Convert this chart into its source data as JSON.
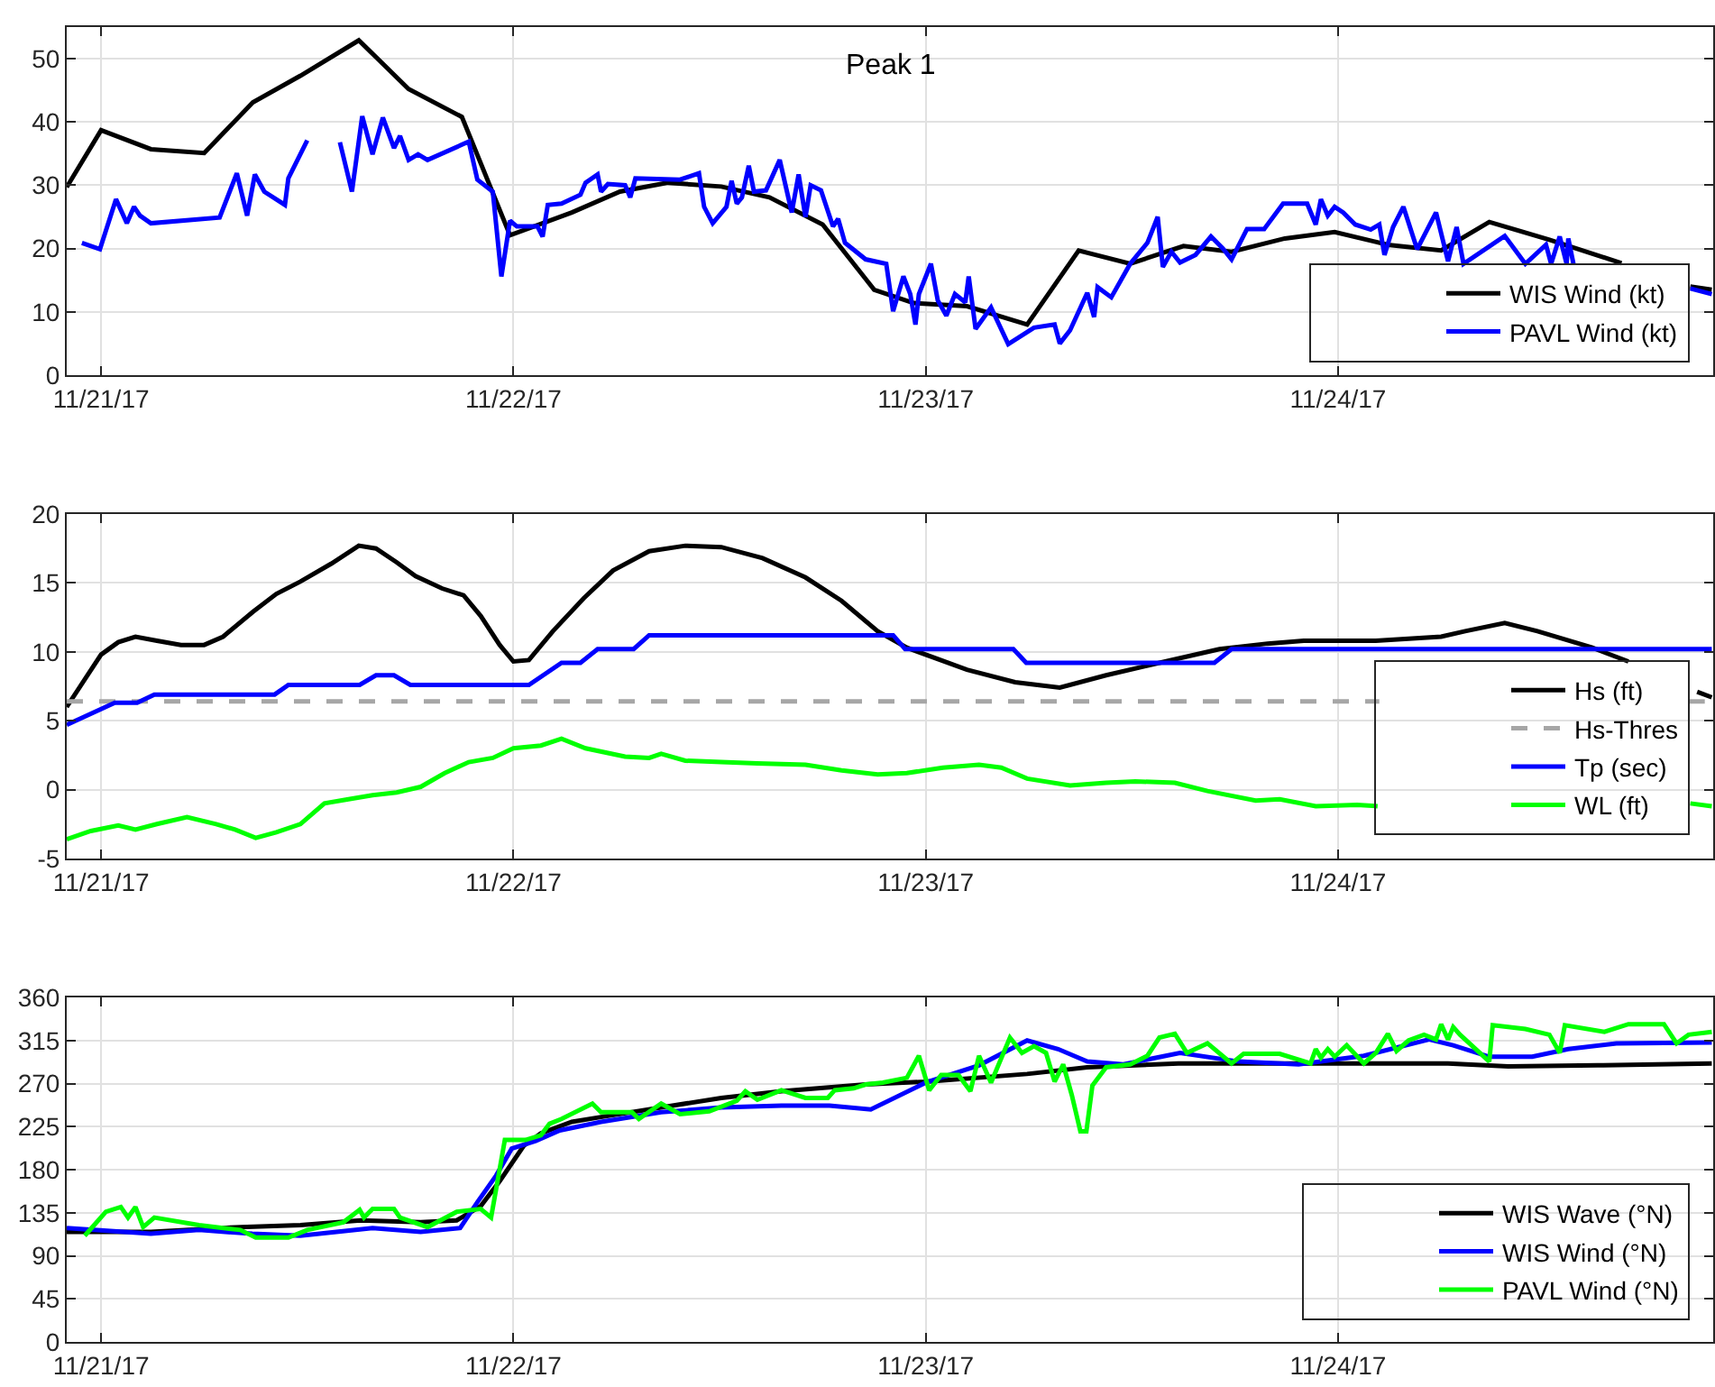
{
  "chart_data": [
    {
      "type": "line",
      "title": "Peak 1",
      "xlim": [
        "--11-20T22:00",
        "--11-24T21:50"
      ],
      "xticks": [
        {
          "value": "--11-21",
          "label": "11/21/17"
        },
        {
          "value": "--11-22",
          "label": "11/22/17"
        },
        {
          "value": "--11-23",
          "label": "11/23/17"
        },
        {
          "value": "--11-24",
          "label": "11/24/17"
        }
      ],
      "ylim": [
        0,
        55
      ],
      "yticks": [
        0,
        10,
        20,
        30,
        40,
        50
      ],
      "grid": true,
      "legend": "bottom right",
      "series": [
        {
          "name": "WIS Wind (kt)",
          "color": "#000000",
          "x": [
            "--11-20T22:00",
            "--11-21T00:00",
            "--11-21T02:54",
            "--11-21T06:00",
            "--11-21T08:50",
            "--11-21T11:36",
            "--11-21T15:00",
            "--11-21T17:54",
            "--11-21T21:00",
            "--11-21T23:48",
            "--11-22T03:24",
            "--11-22T06:12",
            "--11-22T09:00",
            "--11-22T12:06",
            "--11-22T14:54",
            "--11-22T18:00",
            "--11-22T20:30",
            "--11-22T21:00",
            "--11-22T23:18",
            "--11-23T02:24",
            "--11-23T05:54",
            "--11-23T08:54",
            "--11-23T11:54",
            "--11-23T15:00",
            "--11-23T17:48",
            "--11-23T20:54",
            "--11-23T23:48",
            "--11-24T02:54",
            "--11-24T06:00",
            "--11-24T08:48",
            "--11-24T12:18",
            "--11-24T16:30",
            "--11-24T18:30",
            "--11-24T20:30",
            "--11-24T21:45"
          ],
          "values": [
            29.7,
            38.7,
            35.7,
            35.1,
            43.1,
            47.3,
            52.9,
            45.2,
            40.8,
            22.1,
            25.7,
            29.0,
            30.4,
            29.8,
            28.1,
            23.8,
            15.2,
            13.5,
            11.4,
            10.9,
            8.0,
            19.7,
            17.6,
            20.4,
            19.5,
            21.6,
            22.6,
            20.6,
            19.7,
            24.2,
            21.4,
            17.7,
            null,
            14.0,
            13.5
          ]
        },
        {
          "name": "PAVL Wind (kt)",
          "color": "#0000ff",
          "x": [
            "--11-20T22:53",
            "--11-20T23:56",
            "--11-21T00:52",
            "--11-21T01:30",
            "--11-21T01:55",
            "--11-21T02:16",
            "--11-21T02:54",
            "--11-21T06:54",
            "--11-21T07:54",
            "--11-21T08:30",
            "--11-21T08:57",
            "--11-21T09:30",
            "--11-21T10:42",
            "--11-21T10:54",
            "--11-21T12:00",
            "--11-21T13:00",
            "--11-21T13:54",
            "--11-21T14:36",
            "--11-21T15:12",
            "--11-21T15:48",
            "--11-21T16:24",
            "--11-21T17:03",
            "--11-21T17:24",
            "--11-21T17:54",
            "--11-21T18:27",
            "--11-21T19:00",
            "--11-21T21:24",
            "--11-21T21:54",
            "--11-21T22:48",
            "--11-21T23:18",
            "--11-21T23:48",
            "--11-22T00:12",
            "--11-22T01:24",
            "--11-22T01:42",
            "--11-22T02:00",
            "--11-22T02:48",
            "--11-22T03:54",
            "--11-22T04:12",
            "--11-22T04:54",
            "--11-22T05:06",
            "--11-22T05:30",
            "--11-22T06:30",
            "--11-22T06:48",
            "--11-22T07:06",
            "--11-22T09:42",
            "--11-22T10:48",
            "--11-22T11:06",
            "--11-22T11:36",
            "--11-22T12:24",
            "--11-22T12:42",
            "--11-22T13:00",
            "--11-22T13:18",
            "--11-22T13:42",
            "--11-22T14:00",
            "--11-22T14:42",
            "--11-22T15:30",
            "--11-22T16:12",
            "--11-22T16:36",
            "--11-22T17:00",
            "--11-22T17:18",
            "--11-22T17:54",
            "--11-22T18:36",
            "--11-22T18:54",
            "--11-22T19:18",
            "--11-22T20:30",
            "--11-22T21:42",
            "--11-22T22:06",
            "--11-22T22:42",
            "--11-22T23:06",
            "--11-22T23:24",
            "--11-22T23:36",
            "--11-23T00:18",
            "--11-23T00:42",
            "--11-23T01:12",
            "--11-23T01:42",
            "--11-23T02:18",
            "--11-23T02:30",
            "--11-23T02:54",
            "--11-23T03:48",
            "--11-23T04:48",
            "--11-23T06:18",
            "--11-23T07:30",
            "--11-23T07:48",
            "--11-23T08:24",
            "--11-23T09:24",
            "--11-23T09:48",
            "--11-23T10:00",
            "--11-23T10:48",
            "--11-23T11:54",
            "--11-23T12:54",
            "--11-23T13:30",
            "--11-23T13:48",
            "--11-23T14:18",
            "--11-23T14:48",
            "--11-23T15:42",
            "--11-23T16:36",
            "--11-23T17:18",
            "--11-23T17:48",
            "--11-23T18:42",
            "--11-23T19:42",
            "--11-23T20:48",
            "--11-23T22:12",
            "--11-23T22:42",
            "--11-23T23:00",
            "--11-23T23:24",
            "--11-23T23:48",
            "--11-24T00:18",
            "--11-24T01:00",
            "--11-24T01:54",
            "--11-24T02:24",
            "--11-24T02:42",
            "--11-24T03:12",
            "--11-24T03:48",
            "--11-24T04:36",
            "--11-24T05:42",
            "--11-24T06:24",
            "--11-24T06:54",
            "--11-24T07:18",
            "--11-24T09:42",
            "--11-24T10:54",
            "--11-24T12:06",
            "--11-24T12:24",
            "--11-24T12:54",
            "--11-24T13:18",
            "--11-24T13:24",
            "--11-24T13:42",
            "--11-24T17:00",
            "--11-24T20:30",
            "--11-24T21:45"
          ],
          "values": [
            20.9,
            19.9,
            27.8,
            24.0,
            26.6,
            25.2,
            24.0,
            24.9,
            31.9,
            25.2,
            31.7,
            29.0,
            26.9,
            31.1,
            37.1,
            null,
            36.8,
            29.0,
            40.9,
            34.9,
            40.7,
            35.9,
            37.8,
            34.0,
            34.9,
            34.0,
            36.9,
            30.9,
            29.0,
            15.6,
            24.4,
            23.5,
            23.5,
            21.9,
            26.9,
            27.1,
            28.5,
            30.4,
            31.7,
            29.0,
            30.2,
            30.0,
            28.1,
            31.1,
            30.9,
            31.9,
            26.6,
            24.0,
            26.6,
            30.7,
            27.1,
            28.1,
            33.1,
            29.0,
            29.2,
            34.0,
            25.7,
            31.7,
            25.0,
            30.0,
            29.2,
            23.5,
            24.7,
            20.9,
            18.3,
            17.6,
            10.1,
            15.6,
            12.8,
            8.0,
            12.8,
            17.6,
            11.8,
            9.4,
            12.8,
            11.5,
            15.6,
            7.3,
            10.7,
            4.9,
            7.5,
            8.0,
            5.0,
            7.1,
            13.0,
            9.2,
            13.9,
            12.3,
            17.6,
            20.9,
            25.0,
            17.1,
            19.5,
            17.8,
            19.0,
            21.9,
            20.0,
            18.3,
            23.1,
            23.1,
            27.1,
            27.1,
            23.8,
            27.8,
            25.2,
            26.6,
            25.7,
            23.8,
            23.0,
            23.8,
            19.0,
            23.4,
            26.6,
            19.9,
            25.7,
            18.0,
            23.4,
            17.6,
            22.0,
            17.6,
            20.6,
            17.6,
            21.9,
            17.6,
            21.6,
            17.6,
            null,
            13.7,
            12.8
          ]
        }
      ]
    },
    {
      "type": "line",
      "xlim": [
        "--11-20T22:00",
        "--11-24T21:50"
      ],
      "xticks": [
        {
          "value": "--11-21",
          "label": "11/21/17"
        },
        {
          "value": "--11-22",
          "label": "11/22/17"
        },
        {
          "value": "--11-23",
          "label": "11/23/17"
        },
        {
          "value": "--11-24",
          "label": "11/24/17"
        }
      ],
      "ylim": [
        -5,
        20
      ],
      "yticks": [
        -5,
        0,
        5,
        10,
        15,
        20
      ],
      "grid": true,
      "legend": "bottom right",
      "series": [
        {
          "name": "Hs (ft)",
          "color": "#000000",
          "x": [
            "--11-20T22:00",
            "--11-20T23:03",
            "--11-21T00:00",
            "--11-21T01:00",
            "--11-21T02:00",
            "--11-21T03:15",
            "--11-21T04:39",
            "--11-21T06:00",
            "--11-21T07:06",
            "--11-21T08:50",
            "--11-21T10:12",
            "--11-21T11:36",
            "--11-21T13:24",
            "--11-21T15:00",
            "--11-21T16:00",
            "--11-21T17:12",
            "--11-21T18:18",
            "--11-21T19:51",
            "--11-21T21:06",
            "--11-21T22:06",
            "--11-21T23:12",
            "--11-22T00:00",
            "--11-22T00:54",
            "--11-22T02:18",
            "--11-22T04:06",
            "--11-22T05:48",
            "--11-22T07:54",
            "--11-22T10:00",
            "--11-22T12:06",
            "--11-22T14:30",
            "--11-22T17:00",
            "--11-22T19:06",
            "--11-22T21:12",
            "--11-22T22:54",
            "--11-23T02:24",
            "--11-23T05:12",
            "--11-23T07:48",
            "--11-23T10:30",
            "--11-23T13:36",
            "--11-23T17:06",
            "--11-23T19:54",
            "--11-23T22:00",
            "--11-24T02:12",
            "--11-24T06:00",
            "--11-24T07:24",
            "--11-24T09:42",
            "--11-24T11:36",
            "--11-24T14:48",
            "--11-24T16:54",
            "--11-24T19:00",
            "--11-24T20:54",
            "--11-24T21:45"
          ],
          "values": [
            6.0,
            8.0,
            9.8,
            10.7,
            11.1,
            10.8,
            10.5,
            10.5,
            11.1,
            12.9,
            14.2,
            15.1,
            16.4,
            17.7,
            17.5,
            16.5,
            15.5,
            14.6,
            14.1,
            12.6,
            10.5,
            9.3,
            9.4,
            11.5,
            13.9,
            15.9,
            17.3,
            17.7,
            17.6,
            16.8,
            15.4,
            13.7,
            11.5,
            10.3,
            8.7,
            7.8,
            7.4,
            8.3,
            9.2,
            10.2,
            10.6,
            10.8,
            10.8,
            11.1,
            11.5,
            12.1,
            11.5,
            10.3,
            9.3,
            null,
            7.1,
            6.7
          ]
        },
        {
          "name": "Hs-Thres",
          "color": "#a6a6a6",
          "line_style": "dashed",
          "x": [
            "--11-20T22:00",
            "--11-24T02:24",
            "--11-24T11:00",
            "--11-24T20:24",
            "--11-24T21:50"
          ],
          "values": [
            6.4,
            6.4,
            null,
            6.4,
            6.4
          ]
        },
        {
          "name": "Tp (sec)",
          "color": "#0000ff",
          "x": [
            "--11-20T22:00",
            "--11-21T00:48",
            "--11-21T02:06",
            "--11-21T03:06",
            "--11-21T10:06",
            "--11-21T10:54",
            "--11-21T15:03",
            "--11-21T16:00",
            "--11-21T17:03",
            "--11-21T18:00",
            "--11-22T00:54",
            "--11-22T02:48",
            "--11-22T03:54",
            "--11-22T04:54",
            "--11-22T07:00",
            "--11-22T07:54",
            "--11-22T22:06",
            "--11-22T22:48",
            "--11-23T05:06",
            "--11-23T05:51",
            "--11-23T16:48",
            "--11-23T17:48",
            "--11-24T21:45"
          ],
          "values": [
            4.7,
            6.3,
            6.3,
            6.9,
            6.9,
            7.6,
            7.6,
            8.3,
            8.3,
            7.6,
            7.6,
            9.2,
            9.2,
            10.2,
            10.2,
            11.2,
            11.2,
            10.2,
            10.2,
            9.2,
            9.2,
            10.2,
            10.2
          ]
        },
        {
          "name": "WL (ft)",
          "color": "#00ff00",
          "x": [
            "--11-20T22:00",
            "--11-20T23:24",
            "--11-21T01:00",
            "--11-21T02:00",
            "--11-21T03:15",
            "--11-21T05:00",
            "--11-21T06:42",
            "--11-21T07:48",
            "--11-21T09:00",
            "--11-21T10:12",
            "--11-21T11:36",
            "--11-21T13:00",
            "--11-21T14:24",
            "--11-21T15:48",
            "--11-21T17:12",
            "--11-21T18:36",
            "--11-21T20:00",
            "--11-21T21:24",
            "--11-21T22:48",
            "--11-22T00:00",
            "--11-22T01:36",
            "--11-22T02:48",
            "--11-22T04:12",
            "--11-22T06:30",
            "--11-22T07:54",
            "--11-22T08:36",
            "--11-22T10:00",
            "--11-22T12:06",
            "--11-22T14:12",
            "--11-22T17:00",
            "--11-22T19:06",
            "--11-22T21:12",
            "--11-22T22:54",
            "--11-23T01:00",
            "--11-23T03:06",
            "--11-23T04:24",
            "--11-23T05:54",
            "--11-23T08:24",
            "--11-23T10:30",
            "--11-23T12:12",
            "--11-23T14:30",
            "--11-23T16:24",
            "--11-23T19:12",
            "--11-23T20:36",
            "--11-23T22:42",
            "--11-24T01:06",
            "--11-24T02:18",
            "--11-24T11:00",
            "--11-24T20:30",
            "--11-24T21:45"
          ],
          "values": [
            -3.6,
            -3.0,
            -2.6,
            -2.9,
            -2.5,
            -2.0,
            -2.5,
            -2.9,
            -3.5,
            -3.1,
            -2.5,
            -1.0,
            -0.7,
            -0.4,
            -0.2,
            0.2,
            1.2,
            2.0,
            2.3,
            3.0,
            3.2,
            3.7,
            3.0,
            2.4,
            2.3,
            2.6,
            2.1,
            2.0,
            1.9,
            1.8,
            1.4,
            1.1,
            1.2,
            1.6,
            1.8,
            1.6,
            0.8,
            0.3,
            0.5,
            0.6,
            0.5,
            -0.1,
            -0.8,
            -0.7,
            -1.2,
            -1.1,
            -1.2,
            null,
            -1.0,
            -1.2
          ]
        }
      ]
    },
    {
      "type": "line",
      "xlim": [
        "--11-20T22:00",
        "--11-24T21:50"
      ],
      "xticks": [
        {
          "value": "--11-21",
          "label": "11/21/17"
        },
        {
          "value": "--11-22",
          "label": "11/22/17"
        },
        {
          "value": "--11-23",
          "label": "11/23/17"
        },
        {
          "value": "--11-24",
          "label": "11/24/17"
        }
      ],
      "ylim": [
        0,
        360
      ],
      "yticks": [
        0,
        45,
        90,
        135,
        180,
        225,
        270,
        315,
        360
      ],
      "grid": true,
      "legend": "bottom right",
      "series": [
        {
          "name": "WIS Wave (°N)",
          "color": "#000000",
          "x": [
            "--11-20T22:00",
            "--11-21T02:54",
            "--11-21T08:06",
            "--11-21T11:36",
            "--11-21T15:06",
            "--11-21T18:36",
            "--11-21T20:42",
            "--11-21T22:06",
            "--11-21T23:12",
            "--11-22T00:36",
            "--11-22T01:36",
            "--11-22T03:24",
            "--11-22T05:06",
            "--11-22T08:36",
            "--11-22T12:06",
            "--11-22T15:36",
            "--11-22T20:30",
            "--11-23T00:00",
            "--11-23T05:54",
            "--11-23T09:24",
            "--11-23T14:42",
            "--11-23T23:24",
            "--11-24T06:24",
            "--11-24T09:54",
            "--11-24T15:06",
            "--11-24T21:45"
          ],
          "values": [
            115,
            115,
            120,
            122,
            127,
            125,
            127,
            142,
            168,
            205,
            218,
            230,
            235,
            245,
            255,
            262,
            269,
            272,
            280,
            287,
            291,
            291,
            291,
            288,
            289,
            291
          ]
        },
        {
          "name": "WIS Wind (°N)",
          "color": "#0000ff",
          "x": [
            "--11-20T22:00",
            "--11-21T02:54",
            "--11-21T05:42",
            "--11-21T08:48",
            "--11-21T11:36",
            "--11-21T13:42",
            "--11-21T15:48",
            "--11-21T18:36",
            "--11-21T20:54",
            "--11-21T21:54",
            "--11-21T23:00",
            "--11-21T23:54",
            "--11-22T01:18",
            "--11-22T02:42",
            "--11-22T05:06",
            "--11-22T08:36",
            "--11-22T12:06",
            "--11-22T15:36",
            "--11-22T18:24",
            "--11-22T20:48",
            "--11-23T00:00",
            "--11-23T03:06",
            "--11-23T05:54",
            "--11-23T07:42",
            "--11-23T09:24",
            "--11-23T11:30",
            "--11-23T14:48",
            "--11-23T18:12",
            "--11-23T21:42",
            "--11-24T01:30",
            "--11-24T05:18",
            "--11-24T06:42",
            "--11-24T08:48",
            "--11-24T11:18",
            "--11-24T13:24",
            "--11-24T16:12",
            "--11-24T21:45"
          ],
          "values": [
            119,
            113,
            117,
            113,
            111,
            115,
            119,
            115,
            119,
            146,
            174,
            202,
            210,
            221,
            230,
            240,
            245,
            247,
            247,
            243,
            271,
            289,
            315,
            306,
            293,
            290,
            302,
            293,
            290,
            299,
            316,
            310,
            298,
            298,
            306,
            312,
            313
          ]
        },
        {
          "name": "PAVL Wind (°N)",
          "color": "#00ff00",
          "x": [
            "--11-20T23:03",
            "--11-21T00:17",
            "--11-21T01:09",
            "--11-21T01:34",
            "--11-21T02:00",
            "--11-21T02:27",
            "--11-21T03:06",
            "--11-21T05:42",
            "--11-21T08:06",
            "--11-21T09:00",
            "--11-21T10:54",
            "--11-21T12:00",
            "--11-21T14:06",
            "--11-21T15:03",
            "--11-21T15:18",
            "--11-21T15:48",
            "--11-21T17:03",
            "--11-21T17:24",
            "--11-21T19:00",
            "--11-21T20:42",
            "--11-21T22:06",
            "--11-21T22:42",
            "--11-21T23:30",
            "--11-22T00:42",
            "--11-22T01:36",
            "--11-22T02:06",
            "--11-22T02:48",
            "--11-22T04:36",
            "--11-22T05:06",
            "--11-22T06:54",
            "--11-22T07:18",
            "--11-22T08:36",
            "--11-22T09:42",
            "--11-22T11:24",
            "--11-22T13:00",
            "--11-22T13:30",
            "--11-22T14:12",
            "--11-22T15:36",
            "--11-22T17:00",
            "--11-22T18:18",
            "--11-22T18:42",
            "--11-22T19:48",
            "--11-22T20:30",
            "--11-22T21:30",
            "--11-22T22:54",
            "--11-22T23:36",
            "--11-23T00:12",
            "--11-23T00:54",
            "--11-23T01:54",
            "--11-23T02:36",
            "--11-23T03:06",
            "--11-23T03:48",
            "--11-23T04:54",
            "--11-23T05:36",
            "--11-23T06:18",
            "--11-23T07:00",
            "--11-23T07:30",
            "--11-23T08:00",
            "--11-23T08:30",
            "--11-23T09:00",
            "--11-23T09:21",
            "--11-23T09:42",
            "--11-23T10:30",
            "--11-23T11:54",
            "--11-23T12:54",
            "--11-23T13:36",
            "--11-23T14:30",
            "--11-23T15:12",
            "--11-23T16:24",
            "--11-23T17:48",
            "--11-23T18:30",
            "--11-23T20:36",
            "--11-23T22:24",
            "--11-23T22:42",
            "--11-23T23:00",
            "--11-23T23:24",
            "--11-23T23:48",
            "--11-24T00:30",
            "--11-24T01:30",
            "--11-24T02:12",
            "--11-24T02:54",
            "--11-24T03:24",
            "--11-24T04:06",
            "--11-24T05:00",
            "--11-24T05:42",
            "--11-24T06:00",
            "--11-24T06:24",
            "--11-24T06:42",
            "--11-24T07:06",
            "--11-24T08:48",
            "--11-24T09:00",
            "--11-24T10:54",
            "--11-24T12:18",
            "--11-24T12:54",
            "--11-24T13:12",
            "--11-24T15:30",
            "--11-24T16:54",
            "--11-24T18:58",
            "--11-24T19:42",
            "--11-24T20:24",
            "--11-24T21:45"
          ],
          "values": [
            111,
            136,
            141,
            130,
            141,
            120,
            130,
            122,
            117,
            109,
            109,
            117,
            125,
            138,
            130,
            139,
            139,
            130,
            120,
            136,
            139,
            130,
            211,
            211,
            216,
            228,
            233,
            249,
            240,
            240,
            233,
            249,
            238,
            241,
            252,
            262,
            253,
            263,
            255,
            255,
            263,
            265,
            269,
            271,
            276,
            299,
            263,
            279,
            279,
            262,
            299,
            271,
            318,
            302,
            309,
            302,
            272,
            290,
            258,
            220,
            220,
            268,
            287,
            290,
            299,
            318,
            322,
            302,
            312,
            291,
            301,
            301,
            291,
            306,
            297,
            306,
            298,
            310,
            291,
            302,
            322,
            304,
            315,
            321,
            316,
            332,
            316,
            329,
            321,
            293,
            331,
            327,
            321,
            302,
            331,
            324,
            332,
            332,
            312,
            321,
            324
          ]
        }
      ]
    }
  ]
}
